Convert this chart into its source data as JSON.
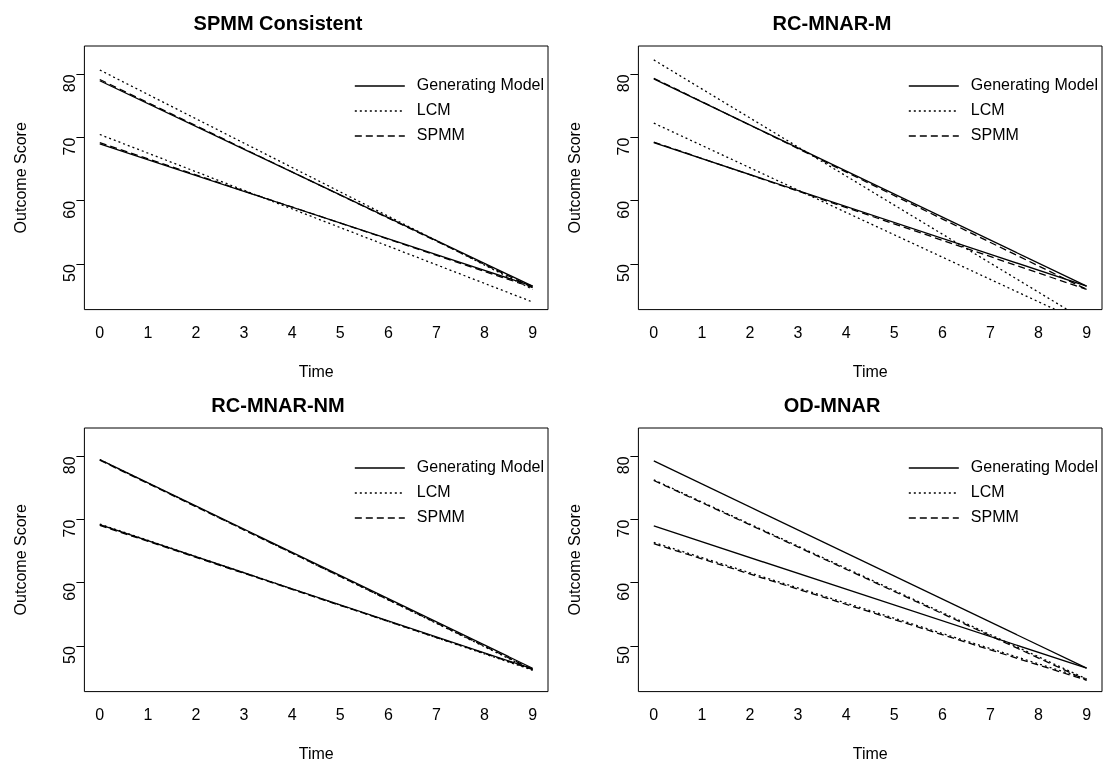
{
  "chart_data": [
    {
      "type": "line",
      "title": "SPMM Consistent",
      "xlabel": "Time",
      "ylabel": "Outcome Score",
      "xlim": [
        -0.32,
        9.32
      ],
      "ylim": [
        42.8,
        84.5
      ],
      "xticks": [
        0,
        1,
        2,
        3,
        4,
        5,
        6,
        7,
        8,
        9
      ],
      "yticks": [
        50,
        60,
        70,
        80
      ],
      "legend": "top right",
      "series": [
        {
          "name": "Generating Model",
          "color": "#000000",
          "line_style": "solid",
          "x": [
            0,
            9
          ],
          "values": [
            79,
            46.5
          ]
        },
        {
          "color": "#000000",
          "line_style": "solid",
          "x": [
            0,
            9
          ],
          "values": [
            69,
            46.5
          ]
        },
        {
          "name": "LCM",
          "color": "#000000",
          "line_style": "dotted",
          "x": [
            0,
            9
          ],
          "values": [
            80.7,
            46
          ]
        },
        {
          "color": "#000000",
          "line_style": "dotted",
          "x": [
            0,
            9
          ],
          "values": [
            70.5,
            44
          ]
        },
        {
          "name": "SPMM",
          "color": "#000000",
          "line_style": "dashed",
          "x": [
            0,
            9
          ],
          "values": [
            79.2,
            46.3
          ]
        },
        {
          "color": "#000000",
          "line_style": "dashed",
          "x": [
            0,
            9
          ],
          "values": [
            69.2,
            46.3
          ]
        }
      ]
    },
    {
      "type": "line",
      "title": "RC-MNAR-M",
      "xlabel": "Time",
      "ylabel": "Outcome Score",
      "xlim": [
        -0.32,
        9.32
      ],
      "ylim": [
        42.8,
        84.5
      ],
      "xticks": [
        0,
        1,
        2,
        3,
        4,
        5,
        6,
        7,
        8,
        9
      ],
      "yticks": [
        50,
        60,
        70,
        80
      ],
      "legend": "top right",
      "series": [
        {
          "name": "Generating Model",
          "color": "#000000",
          "line_style": "solid",
          "x": [
            0,
            9
          ],
          "values": [
            79.3,
            46.5
          ]
        },
        {
          "color": "#000000",
          "line_style": "solid",
          "x": [
            0,
            9
          ],
          "values": [
            69.2,
            46.5
          ]
        },
        {
          "name": "LCM",
          "color": "#000000",
          "line_style": "dotted",
          "x": [
            0,
            8.6
          ],
          "values": [
            82.3,
            42.8
          ]
        },
        {
          "color": "#000000",
          "line_style": "dotted",
          "x": [
            0,
            8.35
          ],
          "values": [
            72.3,
            42.8
          ]
        },
        {
          "name": "SPMM",
          "color": "#000000",
          "line_style": "dashed",
          "x": [
            0,
            9
          ],
          "values": [
            79.4,
            46
          ]
        },
        {
          "color": "#000000",
          "line_style": "dashed",
          "x": [
            0,
            9
          ],
          "values": [
            69.3,
            46
          ]
        }
      ]
    },
    {
      "type": "line",
      "title": "RC-MNAR-NM",
      "xlabel": "Time",
      "ylabel": "Outcome Score",
      "xlim": [
        -0.32,
        9.32
      ],
      "ylim": [
        42.8,
        84.5
      ],
      "xticks": [
        0,
        1,
        2,
        3,
        4,
        5,
        6,
        7,
        8,
        9
      ],
      "yticks": [
        50,
        60,
        70,
        80
      ],
      "legend": "top right",
      "series": [
        {
          "name": "Generating Model",
          "color": "#000000",
          "line_style": "solid",
          "x": [
            0,
            9
          ],
          "values": [
            79.5,
            46.5
          ]
        },
        {
          "color": "#000000",
          "line_style": "solid",
          "x": [
            0,
            9
          ],
          "values": [
            69.2,
            46.4
          ]
        },
        {
          "name": "LCM",
          "color": "#000000",
          "line_style": "dotted",
          "x": [
            0,
            9
          ],
          "values": [
            79.5,
            46.2
          ]
        },
        {
          "color": "#000000",
          "line_style": "dotted",
          "x": [
            0,
            9
          ],
          "values": [
            69.3,
            46.2
          ]
        },
        {
          "name": "SPMM",
          "color": "#000000",
          "line_style": "dashed",
          "x": [
            0,
            9
          ],
          "values": [
            79.4,
            46.3
          ]
        },
        {
          "color": "#000000",
          "line_style": "dashed",
          "x": [
            0,
            9
          ],
          "values": [
            69.1,
            46.3
          ]
        }
      ]
    },
    {
      "type": "line",
      "title": "OD-MNAR",
      "xlabel": "Time",
      "ylabel": "Outcome Score",
      "xlim": [
        -0.32,
        9.32
      ],
      "ylim": [
        42.8,
        84.5
      ],
      "xticks": [
        0,
        1,
        2,
        3,
        4,
        5,
        6,
        7,
        8,
        9
      ],
      "yticks": [
        50,
        60,
        70,
        80
      ],
      "legend": "top right",
      "series": [
        {
          "name": "Generating Model",
          "color": "#000000",
          "line_style": "solid",
          "x": [
            0,
            9
          ],
          "values": [
            79.3,
            46.5
          ]
        },
        {
          "color": "#000000",
          "line_style": "solid",
          "x": [
            0,
            9
          ],
          "values": [
            69,
            46.5
          ]
        },
        {
          "name": "LCM",
          "color": "#000000",
          "line_style": "dotted",
          "x": [
            0,
            9
          ],
          "values": [
            76.3,
            44.8
          ]
        },
        {
          "color": "#000000",
          "line_style": "dotted",
          "x": [
            0,
            9
          ],
          "values": [
            66.4,
            44.8
          ]
        },
        {
          "name": "SPMM",
          "color": "#000000",
          "line_style": "dashed",
          "x": [
            0,
            9
          ],
          "values": [
            76.2,
            44.6
          ]
        },
        {
          "color": "#000000",
          "line_style": "dashed",
          "x": [
            0,
            9
          ],
          "values": [
            66.2,
            44.6
          ]
        }
      ]
    }
  ]
}
